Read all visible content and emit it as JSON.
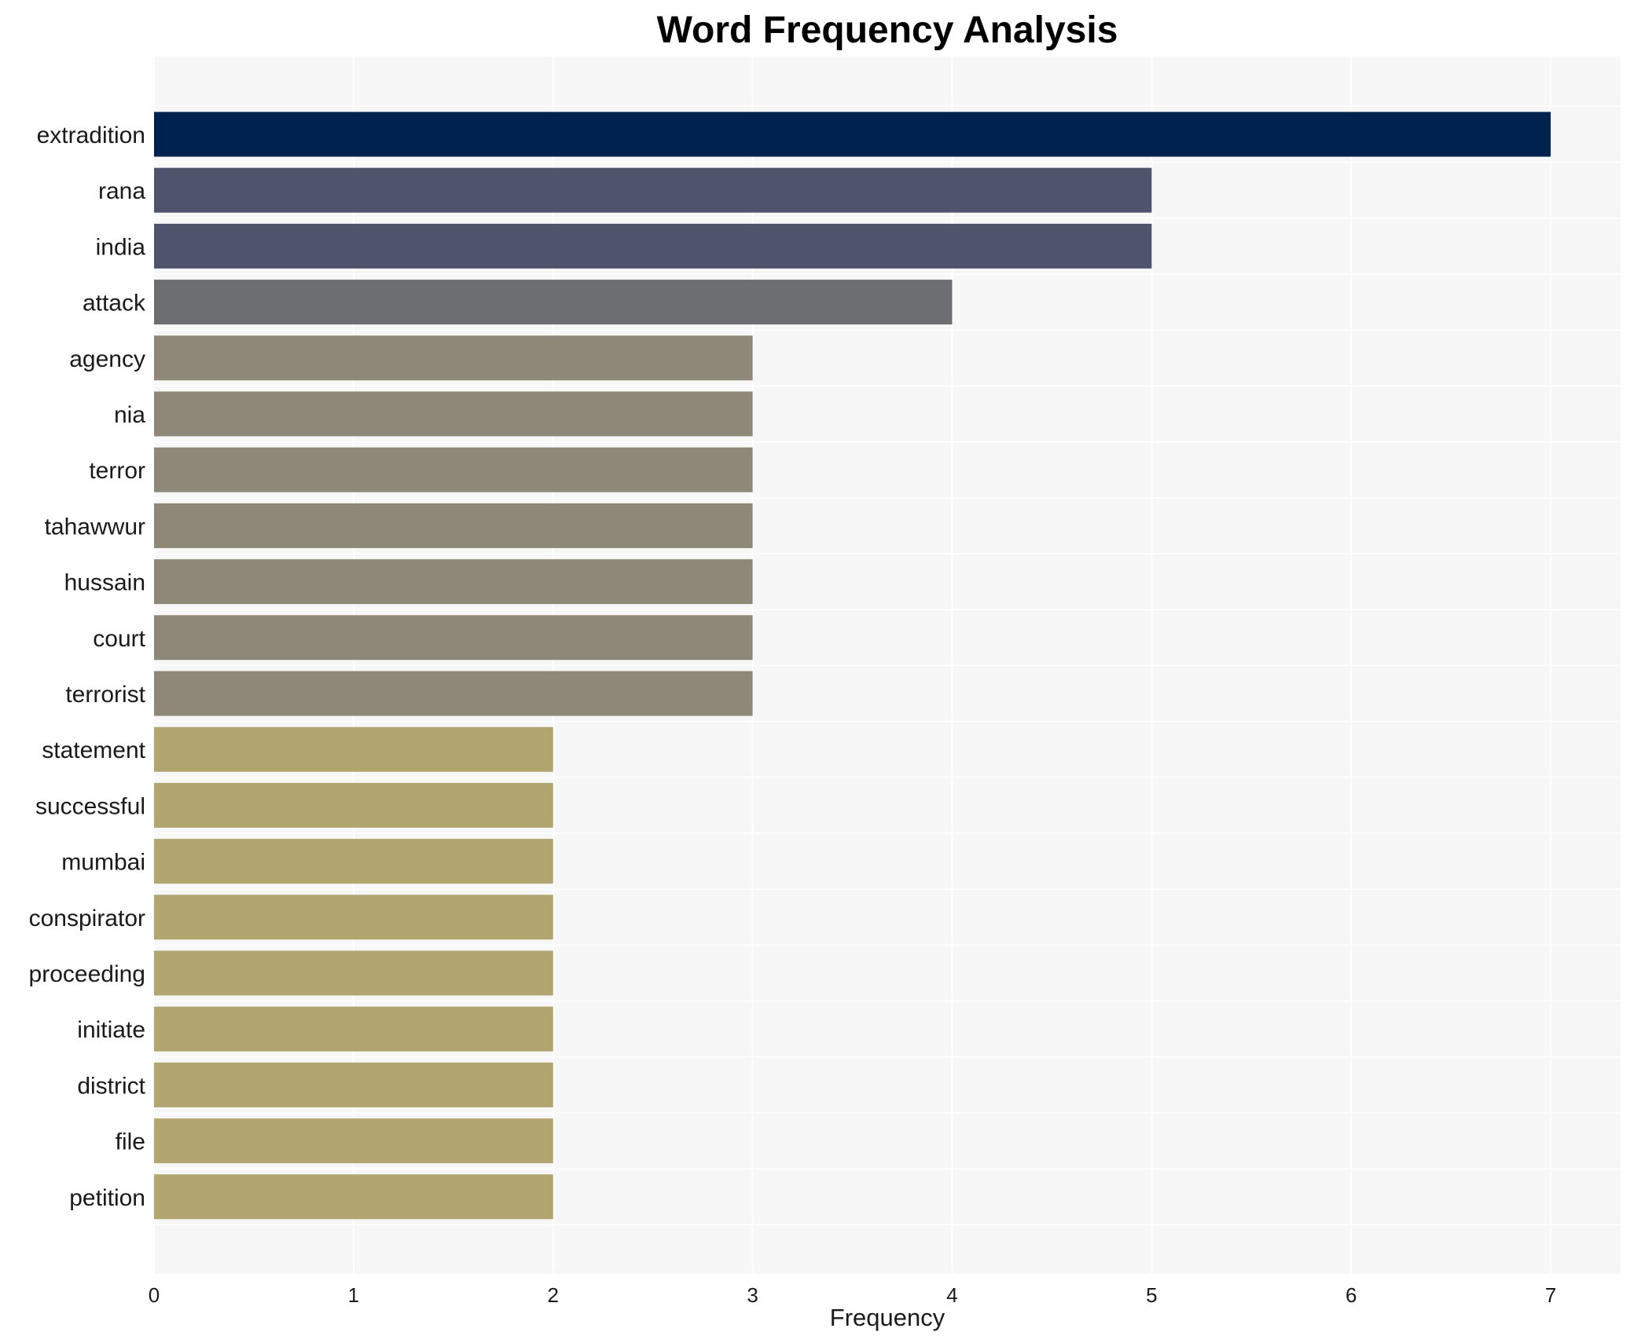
{
  "chart_data": {
    "type": "bar",
    "orientation": "horizontal",
    "title": "Word Frequency Analysis",
    "xlabel": "Frequency",
    "ylabel": "",
    "xlim": [
      0,
      7.35
    ],
    "xticks": [
      0,
      1,
      2,
      3,
      4,
      5,
      6,
      7
    ],
    "grid": true,
    "background": "#f7f7f7",
    "grid_color": "#ffffff",
    "categories": [
      "extradition",
      "rana",
      "india",
      "attack",
      "agency",
      "nia",
      "terror",
      "tahawwur",
      "hussain",
      "court",
      "terrorist",
      "statement",
      "successful",
      "mumbai",
      "conspirator",
      "proceeding",
      "initiate",
      "district",
      "file",
      "petition"
    ],
    "values": [
      7,
      5,
      5,
      4,
      3,
      3,
      3,
      3,
      3,
      3,
      3,
      2,
      2,
      2,
      2,
      2,
      2,
      2,
      2,
      2
    ],
    "colors": [
      "#00224e",
      "#4d546c",
      "#4d546c",
      "#6c6e72",
      "#8f8878",
      "#8f8878",
      "#8f8878",
      "#8f8878",
      "#8f8878",
      "#8f8878",
      "#8f8878",
      "#b1a570",
      "#b1a570",
      "#b1a570",
      "#b1a570",
      "#b1a570",
      "#b1a570",
      "#b1a570",
      "#b1a570",
      "#b1a570"
    ]
  }
}
